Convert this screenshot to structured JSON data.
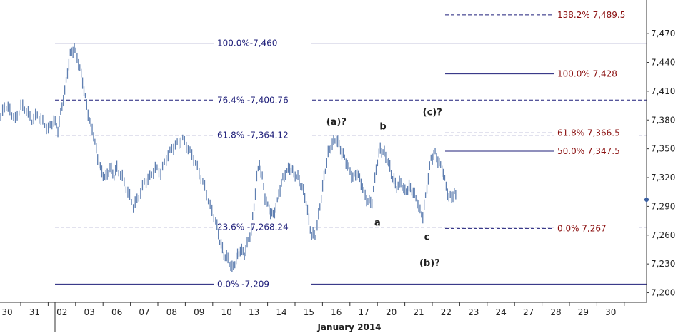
{
  "colors": {
    "bars": "#5f7fb1",
    "fib_left": "#1f1f7a",
    "fib_right": "#8b1010",
    "axis": "#333333",
    "current_marker": "#3b5fa0"
  },
  "chart_data": {
    "type": "bar",
    "subtype": "ohlc-price-bars",
    "xlabel": "January 2014",
    "ylim": [
      7190,
      7505
    ],
    "y_ticks": [
      "7,200",
      "7,230",
      "7,260",
      "7,290",
      "7,320",
      "7,350",
      "7,380",
      "7,410",
      "7,440",
      "7,470"
    ],
    "y_tick_values": [
      7200,
      7230,
      7260,
      7290,
      7320,
      7350,
      7380,
      7410,
      7440,
      7470
    ],
    "x_ticks": [
      "30",
      "31",
      "02",
      "03",
      "06",
      "07",
      "08",
      "09",
      "10",
      "13",
      "14",
      "15",
      "16",
      "17",
      "20",
      "21",
      "22",
      "23",
      "24",
      "27",
      "28",
      "29",
      "30"
    ],
    "fib_levels_left": [
      {
        "label": "100.0%-7,460",
        "value": 7460,
        "style": "solid"
      },
      {
        "label": "76.4% -7,400.76",
        "value": 7400.76,
        "style": "dashed"
      },
      {
        "label": "61.8% -7,364.12",
        "value": 7364.12,
        "style": "dashed"
      },
      {
        "label": "23.6% -7,268.24",
        "value": 7268.24,
        "style": "dashed"
      },
      {
        "label": "0.0% -7,209",
        "value": 7209,
        "style": "solid"
      }
    ],
    "fib_levels_right": [
      {
        "label": "138.2% 7,489.5",
        "value": 7489.5,
        "style": "dashed"
      },
      {
        "label": "100.0% 7,428",
        "value": 7428,
        "style": "solid"
      },
      {
        "label": "61.8% 7,366.5",
        "value": 7366.5,
        "style": "dashed"
      },
      {
        "label": "50.0% 7,347.5",
        "value": 7347.5,
        "style": "solid"
      },
      {
        "label": "0.0% 7,267",
        "value": 7267,
        "style": "dashed"
      }
    ],
    "wave_labels": [
      {
        "label": "(a)?",
        "x": 12.0,
        "y": 7375
      },
      {
        "label": "b",
        "x": 13.7,
        "y": 7370
      },
      {
        "label": "a",
        "x": 13.5,
        "y": 7270
      },
      {
        "label": "c",
        "x": 15.3,
        "y": 7255
      },
      {
        "label": "(c)?",
        "x": 15.5,
        "y": 7385
      },
      {
        "label": "(b)?",
        "x": 15.4,
        "y": 7228
      }
    ],
    "current_price": 7297,
    "series": [
      {
        "values": [
          [
            -0.5,
            7385
          ],
          [
            -0.3,
            7375
          ],
          [
            -0.1,
            7395
          ],
          [
            0.1,
            7390
          ],
          [
            0.3,
            7380
          ],
          [
            0.5,
            7395
          ],
          [
            0.7,
            7390
          ],
          [
            0.9,
            7380
          ],
          [
            1.1,
            7385
          ],
          [
            1.3,
            7378
          ],
          [
            1.5,
            7370
          ],
          [
            1.7,
            7380
          ],
          [
            1.85,
            7370
          ],
          [
            2.0,
            7395
          ],
          [
            2.1,
            7410
          ],
          [
            2.2,
            7430
          ],
          [
            2.3,
            7448
          ],
          [
            2.45,
            7455
          ],
          [
            2.6,
            7440
          ],
          [
            2.75,
            7420
          ],
          [
            2.9,
            7395
          ],
          [
            3.0,
            7380
          ],
          [
            3.15,
            7365
          ],
          [
            3.3,
            7340
          ],
          [
            3.45,
            7325
          ],
          [
            3.6,
            7320
          ],
          [
            3.75,
            7330
          ],
          [
            3.9,
            7322
          ],
          [
            4.0,
            7330
          ],
          [
            4.2,
            7320
          ],
          [
            4.4,
            7305
          ],
          [
            4.6,
            7290
          ],
          [
            4.8,
            7300
          ],
          [
            5.0,
            7315
          ],
          [
            5.2,
            7320
          ],
          [
            5.4,
            7330
          ],
          [
            5.6,
            7325
          ],
          [
            5.8,
            7340
          ],
          [
            6.0,
            7350
          ],
          [
            6.2,
            7355
          ],
          [
            6.4,
            7360
          ],
          [
            6.6,
            7350
          ],
          [
            6.8,
            7340
          ],
          [
            7.0,
            7325
          ],
          [
            7.2,
            7310
          ],
          [
            7.4,
            7290
          ],
          [
            7.6,
            7275
          ],
          [
            7.75,
            7255
          ],
          [
            7.9,
            7240
          ],
          [
            8.05,
            7235
          ],
          [
            8.2,
            7225
          ],
          [
            8.35,
            7235
          ],
          [
            8.5,
            7245
          ],
          [
            8.65,
            7240
          ],
          [
            8.8,
            7255
          ],
          [
            8.9,
            7265
          ],
          [
            9.0,
            7290
          ],
          [
            9.1,
            7320
          ],
          [
            9.2,
            7335
          ],
          [
            9.3,
            7320
          ],
          [
            9.4,
            7300
          ],
          [
            9.5,
            7290
          ],
          [
            9.6,
            7285
          ],
          [
            9.7,
            7280
          ],
          [
            9.85,
            7295
          ],
          [
            10.0,
            7315
          ],
          [
            10.15,
            7325
          ],
          [
            10.3,
            7330
          ],
          [
            10.45,
            7325
          ],
          [
            10.6,
            7320
          ],
          [
            10.75,
            7310
          ],
          [
            10.9,
            7295
          ],
          [
            11.0,
            7275
          ],
          [
            11.1,
            7260
          ],
          [
            11.25,
            7260
          ],
          [
            11.4,
            7290
          ],
          [
            11.55,
            7320
          ],
          [
            11.7,
            7345
          ],
          [
            11.85,
            7355
          ],
          [
            12.0,
            7360
          ],
          [
            12.15,
            7350
          ],
          [
            12.3,
            7340
          ],
          [
            12.45,
            7330
          ],
          [
            12.6,
            7320
          ],
          [
            12.75,
            7325
          ],
          [
            12.9,
            7315
          ],
          [
            13.0,
            7305
          ],
          [
            13.15,
            7295
          ],
          [
            13.3,
            7295
          ],
          [
            13.45,
            7330
          ],
          [
            13.6,
            7350
          ],
          [
            13.75,
            7345
          ],
          [
            13.9,
            7335
          ],
          [
            14.05,
            7320
          ],
          [
            14.2,
            7310
          ],
          [
            14.35,
            7315
          ],
          [
            14.5,
            7305
          ],
          [
            14.65,
            7310
          ],
          [
            14.8,
            7305
          ],
          [
            14.95,
            7295
          ],
          [
            15.05,
            7285
          ],
          [
            15.15,
            7280
          ],
          [
            15.3,
            7310
          ],
          [
            15.45,
            7340
          ],
          [
            15.6,
            7345
          ],
          [
            15.75,
            7335
          ],
          [
            15.9,
            7325
          ],
          [
            16.0,
            7310
          ],
          [
            16.1,
            7300
          ],
          [
            16.2,
            7300
          ],
          [
            16.3,
            7305
          ],
          [
            16.4,
            7295
          ]
        ]
      }
    ]
  }
}
